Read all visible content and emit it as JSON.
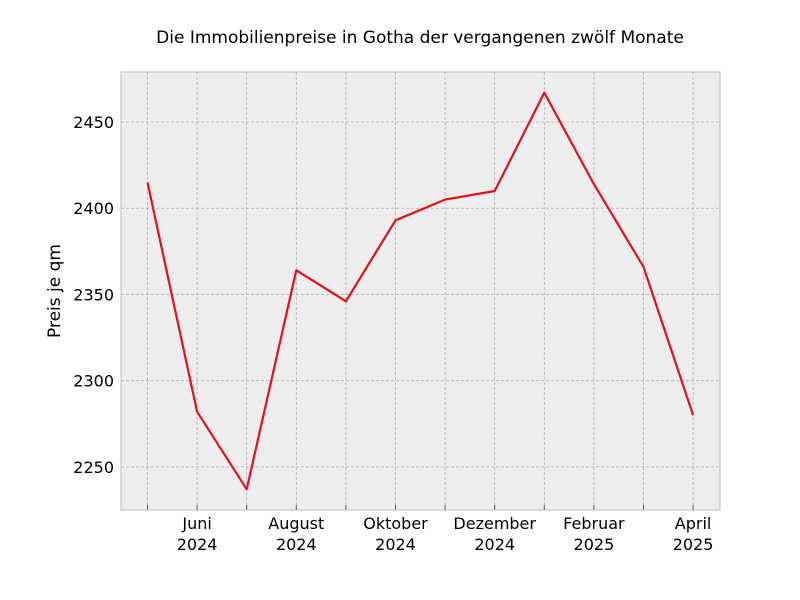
{
  "chart_data": {
    "type": "line",
    "title": "Die Immobilienpreise in Gotha der vergangenen zwölf Monate",
    "xlabel": "",
    "ylabel": "Preis je qm",
    "x": [
      "2024-05",
      "2024-06",
      "2024-07",
      "2024-08",
      "2024-09",
      "2024-10",
      "2024-11",
      "2024-12",
      "2025-01",
      "2025-02",
      "2025-03",
      "2025-04"
    ],
    "series": [
      {
        "values": [
          2415,
          2282,
          2237,
          2364,
          2346,
          2393,
          2405,
          2410,
          2467,
          2414,
          2366,
          2280
        ]
      }
    ],
    "ylim": [
      2225,
      2479
    ],
    "y_ticks": [
      "2250",
      "2300",
      "2350",
      "2400",
      "2450"
    ],
    "x_tick_labels": [
      {
        "month": "Juni",
        "year": "2024"
      },
      {
        "month": "August",
        "year": "2024"
      },
      {
        "month": "Oktober",
        "year": "2024"
      },
      {
        "month": "Dezember",
        "year": "2024"
      },
      {
        "month": "Februar",
        "year": "2025"
      },
      {
        "month": "April",
        "year": "2025"
      }
    ],
    "grid": true,
    "colors": {
      "line": "#e3101e",
      "plot_background": "#eeeeee",
      "grid": "#b0b0b0",
      "frame": "#bcbcbc"
    }
  }
}
